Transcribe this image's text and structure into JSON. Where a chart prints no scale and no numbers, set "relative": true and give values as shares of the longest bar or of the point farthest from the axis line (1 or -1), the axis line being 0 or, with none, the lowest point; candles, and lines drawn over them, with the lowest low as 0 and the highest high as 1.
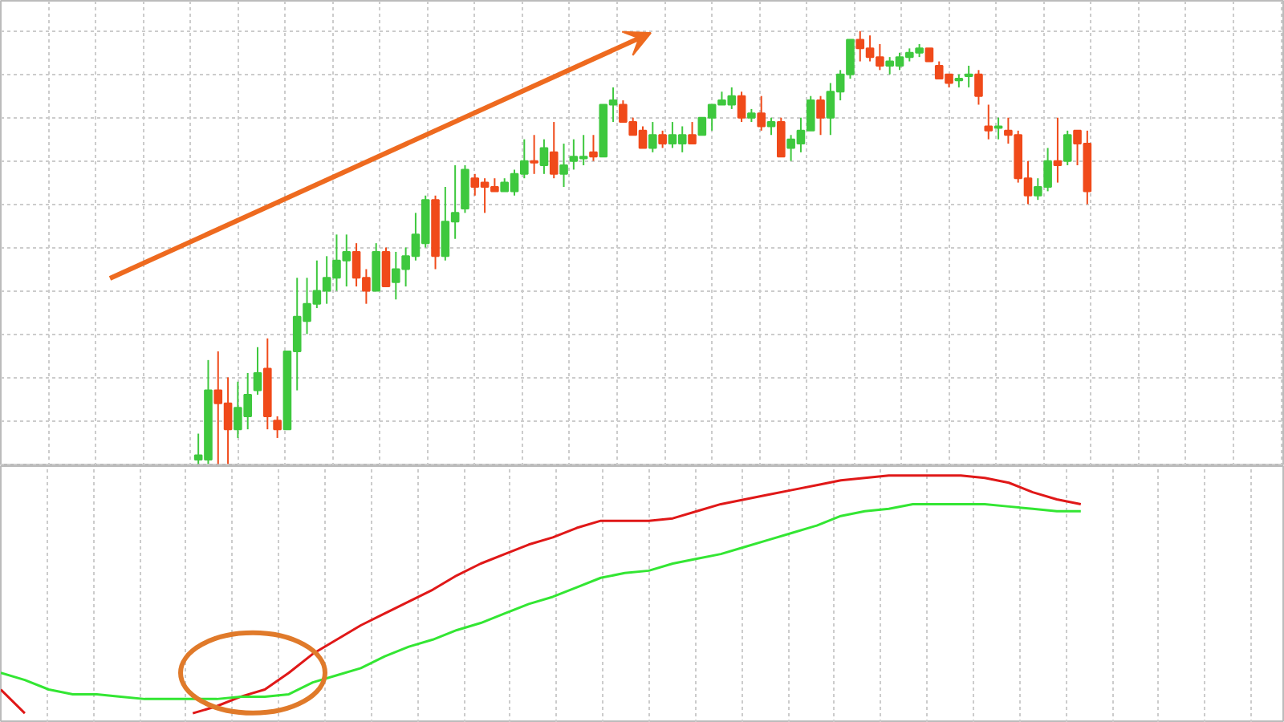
{
  "chart_data": [
    {
      "type": "candlestick",
      "relative": true,
      "grid": true,
      "categories": [
        null,
        null,
        null,
        null,
        null,
        null,
        null,
        null,
        null,
        null,
        null,
        null,
        null,
        null,
        null,
        null,
        null,
        null,
        null,
        null,
        null,
        null,
        null,
        null,
        null,
        null,
        null,
        null,
        null,
        null,
        null,
        null,
        null,
        null,
        null,
        null,
        null,
        null,
        null,
        null,
        null,
        null,
        null,
        null,
        null,
        null,
        null,
        null,
        null,
        null,
        null,
        null,
        null,
        null,
        null,
        null,
        null,
        null,
        null,
        null,
        null,
        null,
        null,
        null,
        null,
        null,
        null,
        null,
        null,
        null,
        null,
        null,
        null,
        null,
        null,
        null,
        null,
        null,
        null,
        null,
        null,
        null,
        null,
        null,
        null,
        null,
        null,
        null,
        null,
        null,
        null
      ],
      "ohlc": [
        [
          0.01,
          0.07,
          0,
          0.02
        ],
        [
          0.01,
          0.24,
          0,
          0.17
        ],
        [
          0.17,
          0.26,
          0,
          0.14
        ],
        [
          0.14,
          0.2,
          0,
          0.08
        ],
        [
          0.08,
          0.19,
          0.06,
          0.13
        ],
        [
          0.11,
          0.21,
          0.08,
          0.16
        ],
        [
          0.17,
          0.27,
          0.16,
          0.21
        ],
        [
          0.22,
          0.29,
          0.08,
          0.11
        ],
        [
          0.1,
          0.11,
          0.06,
          0.08
        ],
        [
          0.08,
          0.26,
          0.08,
          0.26
        ],
        [
          0.26,
          0.43,
          0.17,
          0.34
        ],
        [
          0.33,
          0.43,
          0.3,
          0.37
        ],
        [
          0.37,
          0.47,
          0.36,
          0.4
        ],
        [
          0.4,
          0.48,
          0.37,
          0.43
        ],
        [
          0.43,
          0.53,
          0.4,
          0.47
        ],
        [
          0.47,
          0.53,
          0.41,
          0.49
        ],
        [
          0.49,
          0.51,
          0.41,
          0.43
        ],
        [
          0.43,
          0.45,
          0.37,
          0.4
        ],
        [
          0.4,
          0.51,
          0.4,
          0.49
        ],
        [
          0.49,
          0.5,
          0.41,
          0.41
        ],
        [
          0.42,
          0.49,
          0.38,
          0.45
        ],
        [
          0.45,
          0.5,
          0.41,
          0.48
        ],
        [
          0.48,
          0.58,
          0.47,
          0.53
        ],
        [
          0.51,
          0.62,
          0.5,
          0.61
        ],
        [
          0.61,
          0.62,
          0.45,
          0.48
        ],
        [
          0.48,
          0.64,
          0.47,
          0.56
        ],
        [
          0.56,
          0.69,
          0.52,
          0.58
        ],
        [
          0.59,
          0.69,
          0.58,
          0.68
        ],
        [
          0.66,
          0.67,
          0.62,
          0.64
        ],
        [
          0.65,
          0.66,
          0.58,
          0.64
        ],
        [
          0.64,
          0.66,
          0.63,
          0.63
        ],
        [
          0.63,
          0.66,
          0.63,
          0.65
        ],
        [
          0.63,
          0.68,
          0.62,
          0.67
        ],
        [
          0.67,
          0.75,
          0.66,
          0.7
        ],
        [
          0.7,
          0.76,
          0.67,
          0.7
        ],
        [
          0.69,
          0.75,
          0.67,
          0.73
        ],
        [
          0.72,
          0.79,
          0.66,
          0.67
        ],
        [
          0.67,
          0.74,
          0.64,
          0.69
        ],
        [
          0.7,
          0.75,
          0.68,
          0.71
        ],
        [
          0.71,
          0.76,
          0.69,
          0.71
        ],
        [
          0.72,
          0.76,
          0.7,
          0.71
        ],
        [
          0.71,
          0.83,
          0.71,
          0.83
        ],
        [
          0.83,
          0.87,
          0.79,
          0.84
        ],
        [
          0.83,
          0.84,
          0.79,
          0.79
        ],
        [
          0.79,
          0.8,
          0.76,
          0.76
        ],
        [
          0.77,
          0.78,
          0.73,
          0.73
        ],
        [
          0.73,
          0.79,
          0.72,
          0.76
        ],
        [
          0.76,
          0.77,
          0.73,
          0.74
        ],
        [
          0.74,
          0.79,
          0.73,
          0.76
        ],
        [
          0.74,
          0.78,
          0.72,
          0.76
        ],
        [
          0.76,
          0.79,
          0.74,
          0.74
        ],
        [
          0.76,
          0.8,
          0.76,
          0.8
        ],
        [
          0.8,
          0.83,
          0.77,
          0.83
        ],
        [
          0.83,
          0.86,
          0.83,
          0.84
        ],
        [
          0.83,
          0.87,
          0.82,
          0.85
        ],
        [
          0.85,
          0.86,
          0.79,
          0.8
        ],
        [
          0.8,
          0.82,
          0.79,
          0.81
        ],
        [
          0.81,
          0.85,
          0.77,
          0.78
        ],
        [
          0.78,
          0.8,
          0.76,
          0.79
        ],
        [
          0.79,
          0.8,
          0.71,
          0.71
        ],
        [
          0.73,
          0.76,
          0.7,
          0.75
        ],
        [
          0.74,
          0.8,
          0.72,
          0.77
        ],
        [
          0.77,
          0.85,
          0.77,
          0.84
        ],
        [
          0.84,
          0.85,
          0.76,
          0.8
        ],
        [
          0.8,
          0.88,
          0.76,
          0.86
        ],
        [
          0.86,
          0.91,
          0.84,
          0.9
        ],
        [
          0.9,
          0.98,
          0.89,
          0.98
        ],
        [
          0.98,
          1.0,
          0.93,
          0.96
        ],
        [
          0.96,
          0.99,
          0.93,
          0.94
        ],
        [
          0.94,
          0.97,
          0.91,
          0.92
        ],
        [
          0.92,
          0.94,
          0.9,
          0.93
        ],
        [
          0.92,
          0.95,
          0.91,
          0.94
        ],
        [
          0.94,
          0.96,
          0.93,
          0.95
        ],
        [
          0.95,
          0.97,
          0.94,
          0.96
        ],
        [
          0.96,
          0.96,
          0.93,
          0.93
        ],
        [
          0.92,
          0.93,
          0.89,
          0.89
        ],
        [
          0.9,
          0.9,
          0.87,
          0.88
        ],
        [
          0.89,
          0.9,
          0.87,
          0.89
        ],
        [
          0.9,
          0.92,
          0.87,
          0.9
        ],
        [
          0.9,
          0.91,
          0.83,
          0.85
        ],
        [
          0.78,
          0.83,
          0.75,
          0.77
        ],
        [
          0.78,
          0.8,
          0.75,
          0.78
        ],
        [
          0.77,
          0.8,
          0.74,
          0.76
        ],
        [
          0.76,
          0.77,
          0.65,
          0.66
        ],
        [
          0.66,
          0.7,
          0.6,
          0.62
        ],
        [
          0.62,
          0.66,
          0.61,
          0.64
        ],
        [
          0.64,
          0.73,
          0.63,
          0.7
        ],
        [
          0.7,
          0.8,
          0.65,
          0.69
        ],
        [
          0.7,
          0.77,
          0.69,
          0.76
        ],
        [
          0.77,
          0.77,
          0.69,
          0.74
        ],
        [
          0.74,
          0.77,
          0.6,
          0.63
        ]
      ],
      "colors": [
        "#3ec83e",
        "#3ec83e",
        "#f04a1a",
        "#f04a1a",
        "#3ec83e",
        "#3ec83e",
        "#3ec83e",
        "#f04a1a",
        "#f04a1a",
        "#3ec83e",
        "#3ec83e",
        "#3ec83e",
        "#3ec83e",
        "#3ec83e",
        "#3ec83e",
        "#3ec83e",
        "#f04a1a",
        "#f04a1a",
        "#3ec83e",
        "#f04a1a",
        "#3ec83e",
        "#3ec83e",
        "#3ec83e",
        "#3ec83e",
        "#f04a1a",
        "#3ec83e",
        "#3ec83e",
        "#3ec83e",
        "#f04a1a",
        "#f04a1a",
        "#f04a1a",
        "#3ec83e",
        "#3ec83e",
        "#3ec83e",
        "#f04a1a",
        "#3ec83e",
        "#f04a1a",
        "#3ec83e",
        "#3ec83e",
        "#3ec83e",
        "#f04a1a",
        "#3ec83e",
        "#3ec83e",
        "#f04a1a",
        "#f04a1a",
        "#f04a1a",
        "#3ec83e",
        "#f04a1a",
        "#3ec83e",
        "#3ec83e",
        "#f04a1a",
        "#3ec83e",
        "#3ec83e",
        "#3ec83e",
        "#3ec83e",
        "#f04a1a",
        "#3ec83e",
        "#f04a1a",
        "#3ec83e",
        "#f04a1a",
        "#3ec83e",
        "#3ec83e",
        "#3ec83e",
        "#f04a1a",
        "#3ec83e",
        "#3ec83e",
        "#3ec83e",
        "#f04a1a",
        "#f04a1a",
        "#f04a1a",
        "#3ec83e",
        "#3ec83e",
        "#3ec83e",
        "#3ec83e",
        "#f04a1a",
        "#f04a1a",
        "#f04a1a",
        "#3ec83e",
        "#3ec83e",
        "#f04a1a",
        "#f04a1a",
        "#3ec83e",
        "#f04a1a",
        "#f04a1a",
        "#f04a1a",
        "#3ec83e",
        "#3ec83e",
        "#f04a1a",
        "#3ec83e",
        "#f04a1a",
        "#f04a1a"
      ]
    },
    {
      "type": "line",
      "relative": true,
      "grid": true,
      "categories": [
        null,
        null,
        null,
        null,
        null,
        null,
        null,
        null,
        null,
        null,
        null,
        null,
        null,
        null,
        null,
        null,
        null,
        null,
        null,
        null,
        null,
        null,
        null,
        null,
        null,
        null,
        null,
        null,
        null,
        null,
        null,
        null,
        null,
        null,
        null,
        null,
        null,
        null,
        null,
        null,
        null,
        null,
        null,
        null,
        null,
        null
      ],
      "series": [
        {
          "color": "#e01818",
          "values": [
            0.1,
            0,
            null,
            null,
            null,
            null,
            null,
            null,
            0,
            0.03,
            0.07,
            0.1,
            0.17,
            0.25,
            0.31,
            0.37,
            0.42,
            0.47,
            0.52,
            0.58,
            0.63,
            0.67,
            0.71,
            0.74,
            0.78,
            0.81,
            0.81,
            0.81,
            0.82,
            0.85,
            0.88,
            0.9,
            0.92,
            0.94,
            0.96,
            0.98,
            0.99,
            1.0,
            1.0,
            1.0,
            1.0,
            0.99,
            0.97,
            0.93,
            0.9,
            0.88
          ]
        },
        {
          "color": "#33e633",
          "values": [
            0.17,
            0.14,
            0.1,
            0.08,
            0.08,
            0.07,
            0.06,
            0.06,
            0.06,
            0.06,
            0.07,
            0.07,
            0.08,
            0.13,
            0.16,
            0.19,
            0.24,
            0.28,
            0.31,
            0.35,
            0.38,
            0.42,
            0.46,
            0.49,
            0.53,
            0.57,
            0.59,
            0.6,
            0.63,
            0.65,
            0.67,
            0.7,
            0.73,
            0.76,
            0.79,
            0.83,
            0.85,
            0.86,
            0.88,
            0.88,
            0.88,
            0.88,
            0.87,
            0.86,
            0.85,
            0.85
          ]
        }
      ]
    }
  ]
}
